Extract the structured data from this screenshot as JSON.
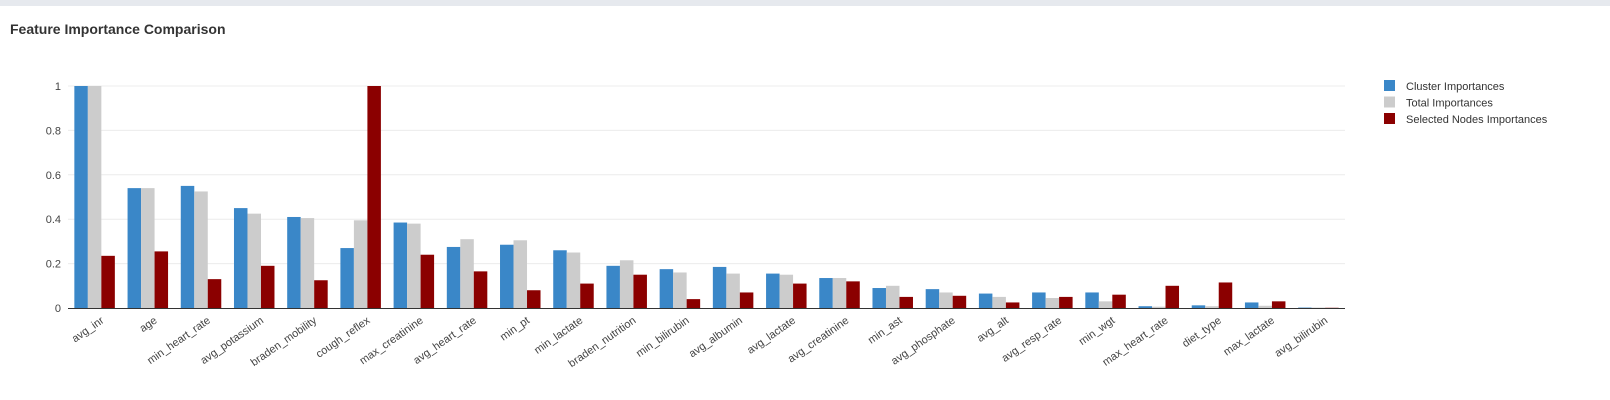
{
  "panel": {
    "title": "Feature Importance Comparison"
  },
  "chart_data": {
    "type": "bar",
    "title": "",
    "xlabel": "",
    "ylabel": "",
    "ylim": [
      0,
      1
    ],
    "yticks": [
      "0",
      "0.2",
      "0.4",
      "0.6",
      "0.8",
      "1"
    ],
    "ytick_values": [
      0,
      0.2,
      0.4,
      0.6,
      0.8,
      1
    ],
    "grid": true,
    "legend_position": "top-right",
    "categories": [
      "avg_inr",
      "age",
      "min_heart_rate",
      "avg_potassium",
      "braden_mobility",
      "cough_reflex",
      "max_creatinine",
      "avg_heart_rate",
      "min_pt",
      "min_lactate",
      "braden_nutrition",
      "min_bilirubin",
      "avg_albumin",
      "avg_lactate",
      "avg_creatinine",
      "min_ast",
      "avg_phosphate",
      "avg_alt",
      "avg_resp_rate",
      "min_wgt",
      "max_heart_rate",
      "diet_type",
      "max_lactate",
      "avg_bilirubin"
    ],
    "series": [
      {
        "name": "Cluster Importances",
        "color": "#3a87c8",
        "values": [
          1.0,
          0.54,
          0.55,
          0.45,
          0.41,
          0.27,
          0.385,
          0.275,
          0.285,
          0.26,
          0.19,
          0.175,
          0.185,
          0.155,
          0.135,
          0.09,
          0.085,
          0.065,
          0.07,
          0.07,
          0.008,
          0.012,
          0.025,
          0.002
        ]
      },
      {
        "name": "Total Importances",
        "color": "#cccccc",
        "values": [
          1.0,
          0.54,
          0.525,
          0.425,
          0.405,
          0.395,
          0.38,
          0.31,
          0.305,
          0.25,
          0.215,
          0.16,
          0.155,
          0.15,
          0.135,
          0.1,
          0.07,
          0.05,
          0.045,
          0.03,
          0.006,
          0.008,
          0.01,
          0.002
        ]
      },
      {
        "name": "Selected Nodes Importances",
        "color": "#8b0000",
        "values": [
          0.235,
          0.255,
          0.13,
          0.19,
          0.125,
          1.0,
          0.24,
          0.165,
          0.08,
          0.11,
          0.15,
          0.04,
          0.07,
          0.11,
          0.12,
          0.05,
          0.055,
          0.025,
          0.05,
          0.06,
          0.1,
          0.115,
          0.03,
          0.001
        ]
      }
    ]
  }
}
